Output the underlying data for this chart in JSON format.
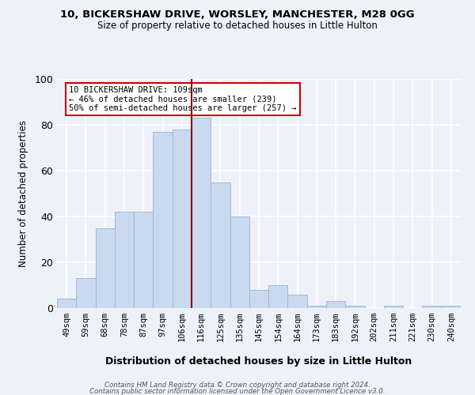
{
  "title_line1": "10, BICKERSHAW DRIVE, WORSLEY, MANCHESTER, M28 0GG",
  "title_line2": "Size of property relative to detached houses in Little Hulton",
  "xlabel": "Distribution of detached houses by size in Little Hulton",
  "ylabel": "Number of detached properties",
  "categories": [
    "49sqm",
    "59sqm",
    "68sqm",
    "78sqm",
    "87sqm",
    "97sqm",
    "106sqm",
    "116sqm",
    "125sqm",
    "135sqm",
    "145sqm",
    "154sqm",
    "164sqm",
    "173sqm",
    "183sqm",
    "192sqm",
    "202sqm",
    "211sqm",
    "221sqm",
    "230sqm",
    "240sqm"
  ],
  "values": [
    4,
    13,
    35,
    42,
    42,
    77,
    78,
    83,
    55,
    40,
    8,
    10,
    6,
    1,
    3,
    1,
    0,
    1,
    0,
    1,
    1
  ],
  "bar_color": "#c9d9f0",
  "bar_edge_color": "#a0b8d8",
  "vline_color": "#8b0000",
  "vline_x": 6.5,
  "annotation_text": "10 BICKERSHAW DRIVE: 109sqm\n← 46% of detached houses are smaller (239)\n50% of semi-detached houses are larger (257) →",
  "annotation_box_color": "#ffffff",
  "annotation_box_edge_color": "#cc0000",
  "footer_line1": "Contains HM Land Registry data © Crown copyright and database right 2024.",
  "footer_line2": "Contains public sector information licensed under the Open Government Licence v3.0.",
  "ylim": [
    0,
    100
  ],
  "background_color": "#eef2f8"
}
